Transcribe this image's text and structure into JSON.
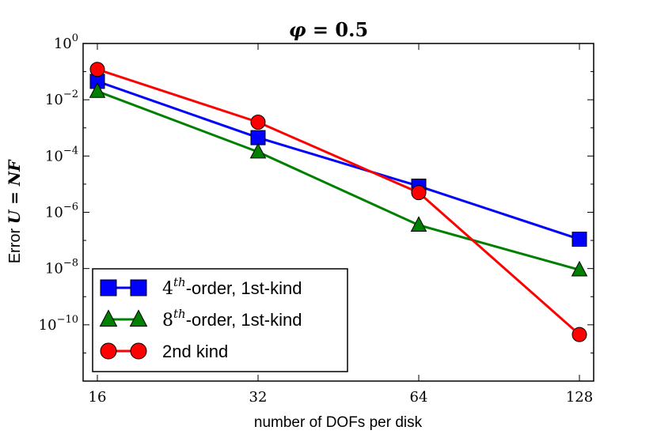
{
  "chart_data": {
    "type": "line",
    "title_symbol": "φ",
    "title_rest": " = 0.5",
    "xlabel": "number of DOFs per disk",
    "ylabel_prefix": "Error ",
    "ylabel_math": "U = NF",
    "x_scale": "log2",
    "y_scale": "log10",
    "xlim": [
      16,
      128
    ],
    "ylim_exponent": [
      -12,
      0
    ],
    "x_ticks": [
      16,
      32,
      64,
      128
    ],
    "x_tick_labels": [
      "16",
      "32",
      "64",
      "128"
    ],
    "y_ticks": [
      {
        "exp": 0,
        "base": "10",
        "sup": "0"
      },
      {
        "exp": -2,
        "base": "10",
        "sup": "−2"
      },
      {
        "exp": -4,
        "base": "10",
        "sup": "−4"
      },
      {
        "exp": -6,
        "base": "10",
        "sup": "−6"
      },
      {
        "exp": -8,
        "base": "10",
        "sup": "−8"
      },
      {
        "exp": -10,
        "base": "10",
        "sup": "−10"
      }
    ],
    "x": [
      16,
      32,
      64,
      128
    ],
    "series": [
      {
        "name": "4th-order, 1st-kind",
        "legend_num": "4",
        "legend_sup": "th",
        "legend_rest": "-order, 1st-kind",
        "marker": "square",
        "color": "#0000ff",
        "values": [
          0.045,
          0.00045,
          8.5e-06,
          1.1e-07
        ]
      },
      {
        "name": "8th-order, 1st-kind",
        "legend_num": "8",
        "legend_sup": "th",
        "legend_rest": "-order, 1st-kind",
        "marker": "triangle",
        "color": "#008000",
        "values": [
          0.02,
          0.00014,
          3.5e-07,
          9e-09
        ]
      },
      {
        "name": "2nd kind",
        "legend_num": "",
        "legend_sup": "",
        "legend_rest": "2nd kind",
        "marker": "circle",
        "color": "#ff0000",
        "values": [
          0.12,
          0.0016,
          5e-06,
          4.5e-11
        ]
      }
    ],
    "legend_position": "lower-left"
  }
}
